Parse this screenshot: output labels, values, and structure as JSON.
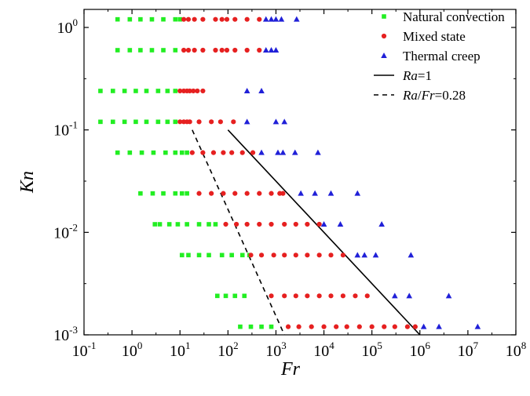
{
  "chart_data": {
    "type": "scatter",
    "xlabel": "Fr",
    "ylabel": "Kn",
    "xscale": "log",
    "yscale": "log",
    "xlim": [
      0.1,
      100000000
    ],
    "ylim": [
      0.001,
      1.5
    ],
    "x_ticks": [
      {
        "base": "10",
        "exp": "-1",
        "value": 0.1
      },
      {
        "base": "10",
        "exp": "0",
        "value": 1
      },
      {
        "base": "10",
        "exp": "1",
        "value": 10
      },
      {
        "base": "10",
        "exp": "2",
        "value": 100
      },
      {
        "base": "10",
        "exp": "3",
        "value": 1000
      },
      {
        "base": "10",
        "exp": "4",
        "value": 10000
      },
      {
        "base": "10",
        "exp": "5",
        "value": 100000
      },
      {
        "base": "10",
        "exp": "6",
        "value": 1000000
      },
      {
        "base": "10",
        "exp": "7",
        "value": 10000000
      },
      {
        "base": "10",
        "exp": "8",
        "value": 100000000
      }
    ],
    "y_ticks": [
      {
        "base": "10",
        "exp": "0",
        "value": 1
      },
      {
        "base": "10",
        "exp": "-1",
        "value": 0.1
      },
      {
        "base": "10",
        "exp": "-2",
        "value": 0.01
      },
      {
        "base": "10",
        "exp": "-3",
        "value": 0.001
      }
    ],
    "legend_position": "top-right",
    "grid": false,
    "series": [
      {
        "name": "Natural convection",
        "marker": "square",
        "color": "#22ee22",
        "points": [
          [
            0.5,
            1.2
          ],
          [
            0.9,
            1.2
          ],
          [
            1.5,
            1.2
          ],
          [
            2.6,
            1.2
          ],
          [
            4.5,
            1.2
          ],
          [
            8,
            1.2
          ],
          [
            10,
            1.2
          ],
          [
            0.5,
            0.6
          ],
          [
            0.9,
            0.6
          ],
          [
            1.5,
            0.6
          ],
          [
            2.6,
            0.6
          ],
          [
            4.5,
            0.6
          ],
          [
            8,
            0.6
          ],
          [
            0.22,
            0.24
          ],
          [
            0.4,
            0.24
          ],
          [
            0.7,
            0.24
          ],
          [
            1.2,
            0.24
          ],
          [
            2,
            0.24
          ],
          [
            3.5,
            0.24
          ],
          [
            5.5,
            0.24
          ],
          [
            8,
            0.24
          ],
          [
            0.22,
            0.12
          ],
          [
            0.4,
            0.12
          ],
          [
            0.7,
            0.12
          ],
          [
            1.2,
            0.12
          ],
          [
            2,
            0.12
          ],
          [
            3.5,
            0.12
          ],
          [
            5.5,
            0.12
          ],
          [
            8,
            0.12
          ],
          [
            0.5,
            0.06
          ],
          [
            0.9,
            0.06
          ],
          [
            1.6,
            0.06
          ],
          [
            2.8,
            0.06
          ],
          [
            5,
            0.06
          ],
          [
            8,
            0.06
          ],
          [
            11,
            0.06
          ],
          [
            14,
            0.06
          ],
          [
            1.5,
            0.024
          ],
          [
            2.7,
            0.024
          ],
          [
            4.5,
            0.024
          ],
          [
            8,
            0.024
          ],
          [
            11,
            0.024
          ],
          [
            14,
            0.024
          ],
          [
            3,
            0.012
          ],
          [
            3.8,
            0.012
          ],
          [
            6,
            0.012
          ],
          [
            9,
            0.012
          ],
          [
            14,
            0.012
          ],
          [
            25,
            0.012
          ],
          [
            40,
            0.012
          ],
          [
            55,
            0.012
          ],
          [
            11,
            0.006
          ],
          [
            15,
            0.006
          ],
          [
            25,
            0.006
          ],
          [
            40,
            0.006
          ],
          [
            75,
            0.006
          ],
          [
            120,
            0.006
          ],
          [
            200,
            0.006
          ],
          [
            280,
            0.006
          ],
          [
            60,
            0.0024
          ],
          [
            90,
            0.0024
          ],
          [
            140,
            0.0024
          ],
          [
            220,
            0.0024
          ],
          [
            180,
            0.0012
          ],
          [
            300,
            0.0012
          ],
          [
            500,
            0.0012
          ],
          [
            800,
            0.0012
          ]
        ]
      },
      {
        "name": "Mixed state",
        "marker": "circle",
        "color": "#e62020",
        "points": [
          [
            12,
            1.2
          ],
          [
            15,
            1.2
          ],
          [
            20,
            1.2
          ],
          [
            30,
            1.2
          ],
          [
            55,
            1.2
          ],
          [
            75,
            1.2
          ],
          [
            95,
            1.2
          ],
          [
            140,
            1.2
          ],
          [
            250,
            1.2
          ],
          [
            450,
            1.2
          ],
          [
            12,
            0.6
          ],
          [
            15,
            0.6
          ],
          [
            20,
            0.6
          ],
          [
            30,
            0.6
          ],
          [
            55,
            0.6
          ],
          [
            75,
            0.6
          ],
          [
            95,
            0.6
          ],
          [
            140,
            0.6
          ],
          [
            250,
            0.6
          ],
          [
            450,
            0.6
          ],
          [
            10,
            0.24
          ],
          [
            12,
            0.24
          ],
          [
            14,
            0.24
          ],
          [
            16,
            0.24
          ],
          [
            19,
            0.24
          ],
          [
            23,
            0.24
          ],
          [
            30,
            0.24
          ],
          [
            10,
            0.12
          ],
          [
            12,
            0.12
          ],
          [
            14,
            0.12
          ],
          [
            16,
            0.12
          ],
          [
            25,
            0.12
          ],
          [
            45,
            0.12
          ],
          [
            70,
            0.12
          ],
          [
            130,
            0.12
          ],
          [
            18,
            0.06
          ],
          [
            30,
            0.06
          ],
          [
            50,
            0.06
          ],
          [
            80,
            0.06
          ],
          [
            120,
            0.06
          ],
          [
            200,
            0.06
          ],
          [
            330,
            0.06
          ],
          [
            25,
            0.024
          ],
          [
            45,
            0.024
          ],
          [
            80,
            0.024
          ],
          [
            140,
            0.024
          ],
          [
            250,
            0.024
          ],
          [
            450,
            0.024
          ],
          [
            800,
            0.024
          ],
          [
            1200,
            0.024
          ],
          [
            1400,
            0.024
          ],
          [
            90,
            0.012
          ],
          [
            150,
            0.012
          ],
          [
            250,
            0.012
          ],
          [
            450,
            0.012
          ],
          [
            800,
            0.012
          ],
          [
            1500,
            0.012
          ],
          [
            2600,
            0.012
          ],
          [
            4500,
            0.012
          ],
          [
            8000,
            0.012
          ],
          [
            300,
            0.006
          ],
          [
            500,
            0.006
          ],
          [
            900,
            0.006
          ],
          [
            1500,
            0.006
          ],
          [
            2600,
            0.006
          ],
          [
            4500,
            0.006
          ],
          [
            8000,
            0.006
          ],
          [
            14000,
            0.006
          ],
          [
            25000,
            0.006
          ],
          [
            800,
            0.0024
          ],
          [
            1500,
            0.0024
          ],
          [
            2600,
            0.0024
          ],
          [
            4500,
            0.0024
          ],
          [
            8000,
            0.0024
          ],
          [
            14000,
            0.0024
          ],
          [
            25000,
            0.0024
          ],
          [
            45000,
            0.0024
          ],
          [
            80000,
            0.0024
          ],
          [
            1800,
            0.0012
          ],
          [
            3000,
            0.0012
          ],
          [
            5500,
            0.0012
          ],
          [
            10000,
            0.0012
          ],
          [
            18000,
            0.0012
          ],
          [
            30000,
            0.0012
          ],
          [
            55000,
            0.0012
          ],
          [
            100000,
            0.0012
          ],
          [
            180000,
            0.0012
          ],
          [
            300000,
            0.0012
          ],
          [
            550000,
            0.0012
          ],
          [
            800000,
            0.0012
          ]
        ]
      },
      {
        "name": "Thermal creep",
        "marker": "triangle",
        "color": "#2020d8",
        "points": [
          [
            620,
            1.2
          ],
          [
            800,
            1.2
          ],
          [
            1000,
            1.2
          ],
          [
            1300,
            1.2
          ],
          [
            2700,
            1.2
          ],
          [
            620,
            0.6
          ],
          [
            800,
            0.6
          ],
          [
            1000,
            0.6
          ],
          [
            250,
            0.24
          ],
          [
            500,
            0.24
          ],
          [
            250,
            0.12
          ],
          [
            1000,
            0.12
          ],
          [
            1500,
            0.12
          ],
          [
            500,
            0.06
          ],
          [
            1100,
            0.06
          ],
          [
            1400,
            0.06
          ],
          [
            2500,
            0.06
          ],
          [
            7500,
            0.06
          ],
          [
            3300,
            0.024
          ],
          [
            6500,
            0.024
          ],
          [
            14000,
            0.024
          ],
          [
            50000,
            0.024
          ],
          [
            10000,
            0.012
          ],
          [
            22000,
            0.012
          ],
          [
            160000,
            0.012
          ],
          [
            50000,
            0.006
          ],
          [
            70000,
            0.006
          ],
          [
            120000,
            0.006
          ],
          [
            650000,
            0.006
          ],
          [
            300000,
            0.0024
          ],
          [
            600000,
            0.0024
          ],
          [
            4000000,
            0.0024
          ],
          [
            1200000,
            0.0012
          ],
          [
            2500000,
            0.0012
          ],
          [
            16000000,
            0.0012
          ]
        ]
      }
    ],
    "lines": [
      {
        "name": "Ra=1",
        "name_parts": [
          "Ra",
          "=1"
        ],
        "style": "solid",
        "color": "#000000",
        "points": [
          [
            100,
            0.1
          ],
          [
            1000000,
            0.001
          ]
        ]
      },
      {
        "name": "Ra/Fr=0.28",
        "name_parts": [
          "Ra",
          "/",
          "Fr",
          "=0.28"
        ],
        "style": "dashed",
        "color": "#000000",
        "points": [
          [
            18,
            0.1
          ],
          [
            1500,
            0.001
          ]
        ]
      }
    ]
  }
}
